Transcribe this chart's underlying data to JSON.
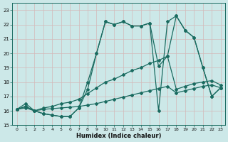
{
  "title": "",
  "xlabel": "Humidex (Indice chaleur)",
  "bg_color": "#cce8e8",
  "line_color": "#1a6b60",
  "xlim": [
    -0.5,
    23.5
  ],
  "ylim": [
    15,
    23.5
  ],
  "xticks": [
    0,
    1,
    2,
    3,
    4,
    5,
    6,
    7,
    8,
    9,
    10,
    11,
    12,
    13,
    14,
    15,
    16,
    17,
    18,
    19,
    20,
    21,
    22,
    23
  ],
  "yticks": [
    15,
    16,
    17,
    18,
    19,
    20,
    21,
    22,
    23
  ],
  "series1_y": [
    16.1,
    16.3,
    16.0,
    15.8,
    15.7,
    15.6,
    15.6,
    16.2,
    17.5,
    20.0,
    22.2,
    22.0,
    22.2,
    21.9,
    21.9,
    22.1,
    16.0,
    22.2,
    22.6,
    21.6,
    21.1,
    19.0,
    17.0,
    17.6
  ],
  "series2_y": [
    16.1,
    16.3,
    16.0,
    15.8,
    15.7,
    15.6,
    15.6,
    16.2,
    18.0,
    20.0,
    22.2,
    22.0,
    22.2,
    21.9,
    21.9,
    22.1,
    19.1,
    19.8,
    22.6,
    21.6,
    21.1,
    19.0,
    17.0,
    17.6
  ],
  "series3_y": [
    16.1,
    16.5,
    16.0,
    16.2,
    16.3,
    16.5,
    16.6,
    16.8,
    17.2,
    17.6,
    18.0,
    18.2,
    18.5,
    18.8,
    19.0,
    19.3,
    19.5,
    19.8,
    17.5,
    17.7,
    17.9,
    18.0,
    18.1,
    17.8
  ],
  "series4_y": [
    16.1,
    16.2,
    16.0,
    16.1,
    16.15,
    16.2,
    16.25,
    16.3,
    16.4,
    16.5,
    16.65,
    16.8,
    16.95,
    17.1,
    17.25,
    17.4,
    17.55,
    17.7,
    17.25,
    17.4,
    17.55,
    17.7,
    17.8,
    17.6
  ]
}
